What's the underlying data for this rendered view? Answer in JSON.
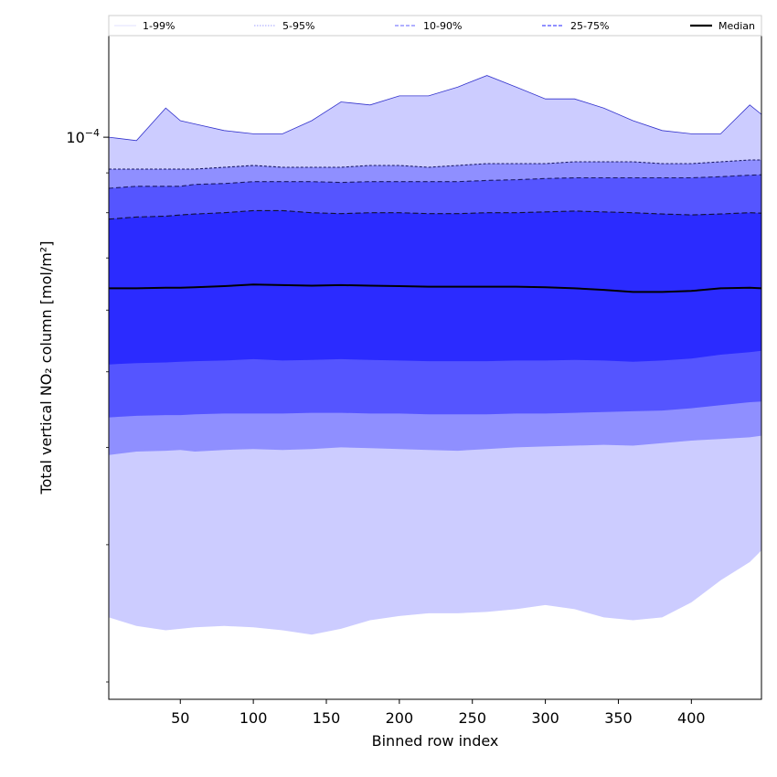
{
  "chart_data": {
    "type": "area",
    "xlabel": "Binned row index",
    "ylabel": "Total vertical NO₂ column [mol/m²]",
    "x_scale": "linear",
    "y_scale": "log",
    "xlim": [
      1,
      448
    ],
    "ylim": [
      1.9e-05,
      0.000135
    ],
    "x_ticks": [
      50,
      100,
      150,
      200,
      250,
      300,
      350,
      400
    ],
    "y_ticks": [
      {
        "value": 0.0001,
        "label": "10",
        "exp": "−4"
      }
    ],
    "grid": false,
    "legend": {
      "placement": "top",
      "entries": [
        {
          "label": "1-99%",
          "color": "#e6e6ff",
          "style": "solid"
        },
        {
          "label": "5-95%",
          "color": "#b3b3ff",
          "style": "dotted"
        },
        {
          "label": "10-90%",
          "color": "#8080ff",
          "style": "dashed"
        },
        {
          "label": "25-75%",
          "color": "#4d4dff",
          "style": "dashed"
        },
        {
          "label": "Median",
          "color": "#000000",
          "style": "solid"
        }
      ]
    },
    "x": [
      1,
      20,
      40,
      50,
      60,
      80,
      100,
      120,
      140,
      160,
      180,
      200,
      220,
      240,
      260,
      280,
      300,
      320,
      340,
      360,
      380,
      400,
      420,
      440,
      448
    ],
    "series": [
      {
        "name": "1-99%",
        "color": "#ccccff",
        "upper": [
          0.0001,
          9.9e-05,
          0.000109,
          0.000105,
          0.000104,
          0.000102,
          0.000101,
          0.000101,
          0.000105,
          0.000111,
          0.00011,
          0.000113,
          0.000113,
          0.000116,
          0.00012,
          0.000116,
          0.000112,
          0.000112,
          0.000109,
          0.000105,
          0.000102,
          0.000101,
          0.000101,
          0.00011,
          0.000107
        ],
        "lower": [
          2.42e-05,
          2.36e-05,
          2.33e-05,
          2.34e-05,
          2.35e-05,
          2.36e-05,
          2.35e-05,
          2.33e-05,
          2.3e-05,
          2.34e-05,
          2.4e-05,
          2.43e-05,
          2.45e-05,
          2.45e-05,
          2.46e-05,
          2.48e-05,
          2.51e-05,
          2.48e-05,
          2.42e-05,
          2.4e-05,
          2.42e-05,
          2.53e-05,
          2.7e-05,
          2.85e-05,
          2.95e-05
        ]
      },
      {
        "name": "5-95%",
        "color": "#8f8fff",
        "upper": [
          9.1e-05,
          9.1e-05,
          9.1e-05,
          9.1e-05,
          9.1e-05,
          9.15e-05,
          9.2e-05,
          9.15e-05,
          9.15e-05,
          9.15e-05,
          9.2e-05,
          9.2e-05,
          9.15e-05,
          9.2e-05,
          9.25e-05,
          9.25e-05,
          9.25e-05,
          9.3e-05,
          9.3e-05,
          9.3e-05,
          9.25e-05,
          9.25e-05,
          9.3e-05,
          9.35e-05,
          9.35e-05
        ],
        "lower": [
          3.91e-05,
          3.95e-05,
          3.96e-05,
          3.97e-05,
          3.95e-05,
          3.97e-05,
          3.98e-05,
          3.97e-05,
          3.98e-05,
          4e-05,
          3.99e-05,
          3.98e-05,
          3.97e-05,
          3.96e-05,
          3.98e-05,
          4e-05,
          4.01e-05,
          4.02e-05,
          4.03e-05,
          4.02e-05,
          4.05e-05,
          4.08e-05,
          4.1e-05,
          4.12e-05,
          4.14e-05
        ]
      },
      {
        "name": "10-90%",
        "color": "#5555ff",
        "upper": [
          8.6e-05,
          8.65e-05,
          8.65e-05,
          8.65e-05,
          8.7e-05,
          8.72e-05,
          8.77e-05,
          8.77e-05,
          8.77e-05,
          8.75e-05,
          8.77e-05,
          8.77e-05,
          8.77e-05,
          8.77e-05,
          8.8e-05,
          8.82e-05,
          8.85e-05,
          8.87e-05,
          8.87e-05,
          8.87e-05,
          8.87e-05,
          8.87e-05,
          8.9e-05,
          8.94e-05,
          8.95e-05
        ],
        "lower": [
          4.37e-05,
          4.39e-05,
          4.4e-05,
          4.4e-05,
          4.41e-05,
          4.42e-05,
          4.42e-05,
          4.42e-05,
          4.43e-05,
          4.43e-05,
          4.42e-05,
          4.42e-05,
          4.41e-05,
          4.41e-05,
          4.41e-05,
          4.42e-05,
          4.42e-05,
          4.43e-05,
          4.44e-05,
          4.45e-05,
          4.46e-05,
          4.49e-05,
          4.53e-05,
          4.57e-05,
          4.58e-05
        ]
      },
      {
        "name": "25-75%",
        "color": "#2b2bff",
        "upper": [
          7.85e-05,
          7.9e-05,
          7.92e-05,
          7.95e-05,
          7.97e-05,
          8e-05,
          8.05e-05,
          8.05e-05,
          8e-05,
          7.98e-05,
          8e-05,
          8e-05,
          7.98e-05,
          7.98e-05,
          8e-05,
          8e-05,
          8.02e-05,
          8.04e-05,
          8.02e-05,
          8e-05,
          7.97e-05,
          7.95e-05,
          7.97e-05,
          8e-05,
          7.99e-05
        ],
        "lower": [
          5.11e-05,
          5.13e-05,
          5.14e-05,
          5.15e-05,
          5.16e-05,
          5.17e-05,
          5.19e-05,
          5.17e-05,
          5.18e-05,
          5.19e-05,
          5.18e-05,
          5.17e-05,
          5.16e-05,
          5.16e-05,
          5.16e-05,
          5.17e-05,
          5.17e-05,
          5.18e-05,
          5.17e-05,
          5.15e-05,
          5.17e-05,
          5.2e-05,
          5.26e-05,
          5.3e-05,
          5.32e-05
        ]
      }
    ],
    "median": {
      "name": "Median",
      "color": "#000000",
      "values": [
        6.4e-05,
        6.4e-05,
        6.41e-05,
        6.41e-05,
        6.42e-05,
        6.44e-05,
        6.47e-05,
        6.46e-05,
        6.45e-05,
        6.46e-05,
        6.45e-05,
        6.44e-05,
        6.43e-05,
        6.43e-05,
        6.43e-05,
        6.43e-05,
        6.42e-05,
        6.4e-05,
        6.37e-05,
        6.33e-05,
        6.33e-05,
        6.35e-05,
        6.4e-05,
        6.41e-05,
        6.4e-05
      ]
    }
  }
}
